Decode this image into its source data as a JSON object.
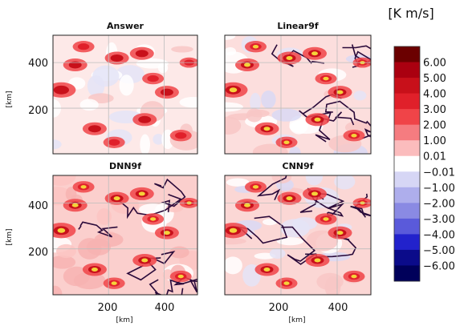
{
  "chart_data": {
    "type": "heatmap",
    "units_label": "[K m/s]",
    "xlabel": "[km]",
    "ylabel": "[km]",
    "xlim": [
      0,
      520
    ],
    "ylim": [
      0,
      520
    ],
    "x_ticks": [
      "200",
      "400"
    ],
    "y_ticks": [
      "200",
      "400"
    ],
    "grid": true,
    "colorbar": {
      "placement": "right",
      "levels": [
        "6.00",
        "5.00",
        "4.00",
        "3.00",
        "2.00",
        "1.00",
        "0.01",
        "−0.01",
        "−1.00",
        "−2.00",
        "−3.00",
        "−4.00",
        "−5.00",
        "−6.00"
      ],
      "colors": [
        "#6b0000",
        "#aa0010",
        "#c8101a",
        "#e0202a",
        "#f04448",
        "#f57c80",
        "#fbbcbd",
        "#ffffff",
        "#d6d6f5",
        "#aeaeec",
        "#8a8ae3",
        "#5a5ada",
        "#2222cc",
        "#0b0b8a",
        "#00005a"
      ]
    },
    "panels": [
      {
        "title": "Answer",
        "background": "#fde9e8",
        "contours": false,
        "show_x_ticks": false,
        "show_y_ticks": true
      },
      {
        "title": "Linear9f",
        "background": "#fcdedd",
        "contours": true,
        "show_x_ticks": false,
        "show_y_ticks": false
      },
      {
        "title": "DNN9f",
        "background": "#fbcfcd",
        "contours": true,
        "show_x_ticks": true,
        "show_y_ticks": true
      },
      {
        "title": "CNN9f",
        "background": "#fbd7d5",
        "contours": true,
        "show_x_ticks": true,
        "show_y_ticks": false
      }
    ],
    "hotspots_km": [
      {
        "x": 30,
        "y": 280,
        "v": 4.0
      },
      {
        "x": 80,
        "y": 390,
        "v": 3.0
      },
      {
        "x": 110,
        "y": 470,
        "v": 2.5
      },
      {
        "x": 150,
        "y": 110,
        "v": 3.0
      },
      {
        "x": 220,
        "y": 50,
        "v": 2.5
      },
      {
        "x": 230,
        "y": 420,
        "v": 3.0
      },
      {
        "x": 320,
        "y": 440,
        "v": 3.0
      },
      {
        "x": 330,
        "y": 150,
        "v": 3.0
      },
      {
        "x": 360,
        "y": 330,
        "v": 2.5
      },
      {
        "x": 410,
        "y": 270,
        "v": 3.0
      },
      {
        "x": 460,
        "y": 80,
        "v": 2.5
      },
      {
        "x": 490,
        "y": 400,
        "v": 2.0
      }
    ]
  }
}
